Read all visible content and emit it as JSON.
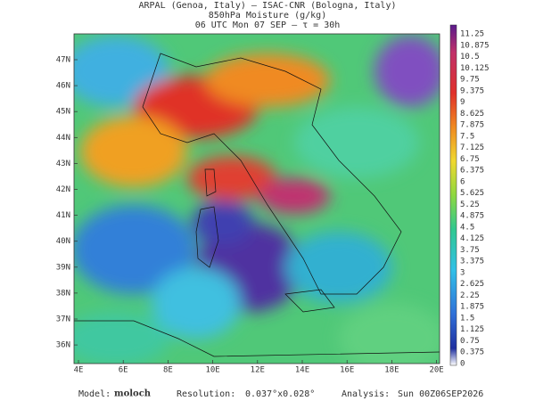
{
  "header": {
    "line1": "ARPAL (Genoa, Italy)  –  ISAC-CNR (Bologna, Italy)",
    "line2": "850hPa Moisture (g/kg)",
    "line3": "06 UTC Mon 07 SEP  –  τ = 30h"
  },
  "lat_labels": [
    "47N",
    "46N",
    "45N",
    "44N",
    "43N",
    "42N",
    "41N",
    "40N",
    "39N",
    "38N",
    "37N",
    "36N"
  ],
  "lon_labels": [
    "4E",
    "6E",
    "8E",
    "10E",
    "12E",
    "14E",
    "16E",
    "18E",
    "20E"
  ],
  "colorbar_labels": [
    "11.25",
    "10.875",
    "10.5",
    "10.125",
    "9.75",
    "9.375",
    "9",
    "8.625",
    "7.875",
    "7.5",
    "7.125",
    "6.75",
    "6.375",
    "6",
    "5.625",
    "5.25",
    "4.875",
    "4.5",
    "4.125",
    "3.75",
    "3.375",
    "3",
    "2.625",
    "2.25",
    "1.875",
    "1.5",
    "1.125",
    "0.75",
    "0.375",
    "0"
  ],
  "footer": {
    "model_label": "Model:",
    "model": "moloch",
    "resolution_label": "Resolution:",
    "resolution": "0.037°x0.028°",
    "analysis_label": "Analysis:",
    "analysis": "Sun 00Z06SEP2026"
  }
}
